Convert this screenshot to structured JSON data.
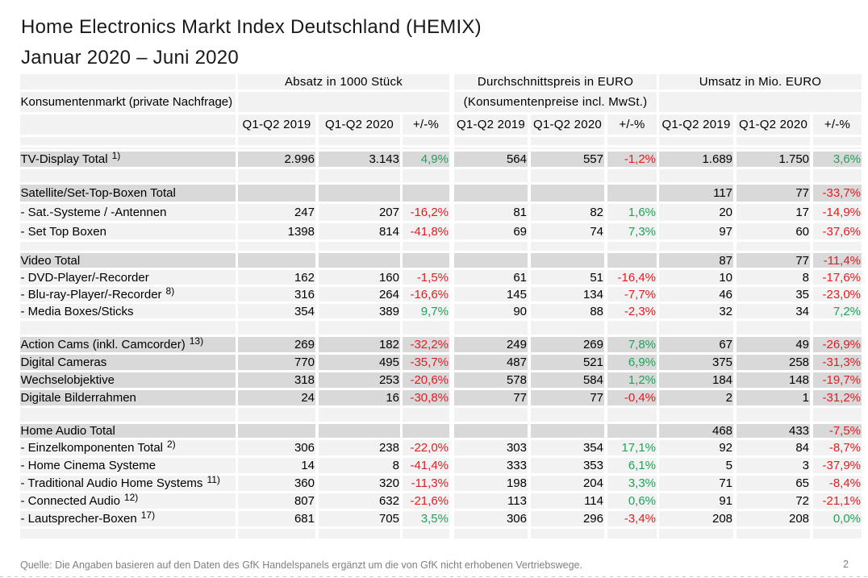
{
  "slide": {
    "title": "Home Electronics Markt Index Deutschland (HEMIX)",
    "subtitle": "Januar 2020 – Juni 2020",
    "footer_note": "Quelle: Die Angaben basieren auf den Daten des GfK Handelspanels ergänzt um die von GfK nicht erhobenen Vertriebswege.",
    "page_number": "2"
  },
  "colors": {
    "positive_green": "#1ea35a",
    "negative_red": "#e51b20",
    "row_shade_dark": "#d9d9d9",
    "row_shade_light": "#f2f2f2",
    "muted_gray": "#808080"
  },
  "table": {
    "row_header_label": "Konsumentenmarkt (private Nachfrage)",
    "groups": [
      {
        "label": "Absatz in 1000 Stück",
        "sublabel": ""
      },
      {
        "label": "Durchschnittspreis in EURO",
        "sublabel": "(Konsumentenpreise incl. MwSt.)"
      },
      {
        "label": "Umsatz in Mio. EURO",
        "sublabel": ""
      }
    ],
    "col_headers": [
      "Q1-Q2 2019",
      "Q1-Q2 2020",
      "+/-%"
    ],
    "rows": [
      {
        "kind": "spacer-sm"
      },
      {
        "kind": "spacer-sm"
      },
      {
        "kind": "data",
        "shade": "dark",
        "label": "TV-Display Total",
        "sup": "1)",
        "values": [
          "2.996",
          "3.143",
          "4,9%",
          "564",
          "557",
          "-1,2%",
          "1.689",
          "1.750",
          "3,6%"
        ]
      },
      {
        "kind": "spacer"
      },
      {
        "kind": "data",
        "shade": "dark",
        "label": "Satellite/Set-Top-Boxen Total",
        "sup": "",
        "values": [
          "",
          "",
          "",
          "",
          "",
          "",
          "117",
          "77",
          "-33,7%"
        ]
      },
      {
        "kind": "data",
        "shade": "light",
        "label": "- Sat.-Systeme / -Antennen",
        "sup": "",
        "values": [
          "247",
          "207",
          "-16,2%",
          "81",
          "82",
          "1,6%",
          "20",
          "17",
          "-14,9%"
        ]
      },
      {
        "kind": "data",
        "shade": "light",
        "label": "- Set Top Boxen",
        "sup": "",
        "values": [
          "1398",
          "814",
          "-41,8%",
          "69",
          "74",
          "7,3%",
          "97",
          "60",
          "-37,6%"
        ]
      },
      {
        "kind": "spacer"
      },
      {
        "kind": "data",
        "shade": "dark",
        "label": "Video Total",
        "sup": "",
        "values": [
          "",
          "",
          "",
          "",
          "",
          "",
          "87",
          "77",
          "-11,4%"
        ]
      },
      {
        "kind": "data",
        "shade": "light",
        "label": "- DVD-Player/-Recorder",
        "sup": "",
        "values": [
          "162",
          "160",
          "-1,5%",
          "61",
          "51",
          "-16,4%",
          "10",
          "8",
          "-17,6%"
        ]
      },
      {
        "kind": "data",
        "shade": "light",
        "label": "- Blu-ray-Player/-Recorder",
        "sup": "8)",
        "values": [
          "316",
          "264",
          "-16,6%",
          "145",
          "134",
          "-7,7%",
          "46",
          "35",
          "-23,0%"
        ]
      },
      {
        "kind": "data",
        "shade": "light",
        "label": "- Media Boxes/Sticks",
        "sup": "",
        "values": [
          "354",
          "389",
          "9,7%",
          "90",
          "88",
          "-2,3%",
          "32",
          "34",
          "7,2%"
        ]
      },
      {
        "kind": "spacer"
      },
      {
        "kind": "data",
        "shade": "dark",
        "label": "Action Cams (inkl. Camcorder)",
        "sup": "13)",
        "values": [
          "269",
          "182",
          "-32,2%",
          "249",
          "269",
          "7,8%",
          "67",
          "49",
          "-26,9%"
        ]
      },
      {
        "kind": "data",
        "shade": "dark",
        "label": "Digital Cameras",
        "sup": "",
        "values": [
          "770",
          "495",
          "-35,7%",
          "487",
          "521",
          "6,9%",
          "375",
          "258",
          "-31,3%"
        ]
      },
      {
        "kind": "data",
        "shade": "dark",
        "label": "Wechselobjektive",
        "sup": "",
        "values": [
          "318",
          "253",
          "-20,6%",
          "578",
          "584",
          "1,2%",
          "184",
          "148",
          "-19,7%"
        ]
      },
      {
        "kind": "data",
        "shade": "dark",
        "label": "Digitale Bilderrahmen",
        "sup": "",
        "values": [
          "24",
          "16",
          "-30,8%",
          "77",
          "77",
          "-0,4%",
          "2",
          "1",
          "-31,2%"
        ]
      },
      {
        "kind": "spacer"
      },
      {
        "kind": "data",
        "shade": "dark",
        "label": "Home Audio Total",
        "sup": "",
        "values": [
          "",
          "",
          "",
          "",
          "",
          "",
          "468",
          "433",
          "-7,5%"
        ]
      },
      {
        "kind": "data",
        "shade": "light",
        "label": "- Einzelkomponenten Total",
        "sup": "2)",
        "values": [
          "306",
          "238",
          "-22,0%",
          "303",
          "354",
          "17,1%",
          "92",
          "84",
          "-8,7%"
        ]
      },
      {
        "kind": "data",
        "shade": "light",
        "label": "- Home Cinema Systeme",
        "sup": "",
        "values": [
          "14",
          "8",
          "-41,4%",
          "333",
          "353",
          "6,1%",
          "5",
          "3",
          "-37,9%"
        ]
      },
      {
        "kind": "data",
        "shade": "light",
        "label": "- Traditional Audio Home Systems",
        "sup": "11)",
        "values": [
          "360",
          "320",
          "-11,3%",
          "198",
          "204",
          "3,3%",
          "71",
          "65",
          "-8,4%"
        ]
      },
      {
        "kind": "data",
        "shade": "light",
        "label": "- Connected Audio",
        "sup": "12)",
        "values": [
          "807",
          "632",
          "-21,6%",
          "113",
          "114",
          "0,6%",
          "91",
          "72",
          "-21,1%"
        ]
      },
      {
        "kind": "data",
        "shade": "light",
        "label": "- Lautsprecher-Boxen",
        "sup": "17)",
        "values": [
          "681",
          "705",
          "3,5%",
          "306",
          "296",
          "-3,4%",
          "208",
          "208",
          "0,0%"
        ]
      },
      {
        "kind": "spacer-end"
      }
    ]
  },
  "chart_data": {
    "type": "table",
    "title": "Home Electronics Markt Index Deutschland (HEMIX) Januar 2020 – Juni 2020",
    "column_groups": [
      "Absatz in 1000 Stück",
      "Durchschnittspreis in EURO",
      "Umsatz in Mio. EURO"
    ],
    "columns": [
      "Q1-Q2 2019",
      "Q1-Q2 2020",
      "+/-%",
      "Q1-Q2 2019",
      "Q1-Q2 2020",
      "+/-%",
      "Q1-Q2 2019",
      "Q1-Q2 2020",
      "+/-%"
    ],
    "rows": [
      {
        "category": "TV-Display Total",
        "absatz_2019": 2996,
        "absatz_2020": 3143,
        "absatz_pct": 4.9,
        "preis_2019": 564,
        "preis_2020": 557,
        "preis_pct": -1.2,
        "umsatz_2019": 1689,
        "umsatz_2020": 1750,
        "umsatz_pct": 3.6
      },
      {
        "category": "Satellite/Set-Top-Boxen Total",
        "absatz_2019": null,
        "absatz_2020": null,
        "absatz_pct": null,
        "preis_2019": null,
        "preis_2020": null,
        "preis_pct": null,
        "umsatz_2019": 117,
        "umsatz_2020": 77,
        "umsatz_pct": -33.7
      },
      {
        "category": "Sat.-Systeme / -Antennen",
        "absatz_2019": 247,
        "absatz_2020": 207,
        "absatz_pct": -16.2,
        "preis_2019": 81,
        "preis_2020": 82,
        "preis_pct": 1.6,
        "umsatz_2019": 20,
        "umsatz_2020": 17,
        "umsatz_pct": -14.9
      },
      {
        "category": "Set Top Boxen",
        "absatz_2019": 1398,
        "absatz_2020": 814,
        "absatz_pct": -41.8,
        "preis_2019": 69,
        "preis_2020": 74,
        "preis_pct": 7.3,
        "umsatz_2019": 97,
        "umsatz_2020": 60,
        "umsatz_pct": -37.6
      },
      {
        "category": "Video Total",
        "absatz_2019": null,
        "absatz_2020": null,
        "absatz_pct": null,
        "preis_2019": null,
        "preis_2020": null,
        "preis_pct": null,
        "umsatz_2019": 87,
        "umsatz_2020": 77,
        "umsatz_pct": -11.4
      },
      {
        "category": "DVD-Player/-Recorder",
        "absatz_2019": 162,
        "absatz_2020": 160,
        "absatz_pct": -1.5,
        "preis_2019": 61,
        "preis_2020": 51,
        "preis_pct": -16.4,
        "umsatz_2019": 10,
        "umsatz_2020": 8,
        "umsatz_pct": -17.6
      },
      {
        "category": "Blu-ray-Player/-Recorder",
        "absatz_2019": 316,
        "absatz_2020": 264,
        "absatz_pct": -16.6,
        "preis_2019": 145,
        "preis_2020": 134,
        "preis_pct": -7.7,
        "umsatz_2019": 46,
        "umsatz_2020": 35,
        "umsatz_pct": -23.0
      },
      {
        "category": "Media Boxes/Sticks",
        "absatz_2019": 354,
        "absatz_2020": 389,
        "absatz_pct": 9.7,
        "preis_2019": 90,
        "preis_2020": 88,
        "preis_pct": -2.3,
        "umsatz_2019": 32,
        "umsatz_2020": 34,
        "umsatz_pct": 7.2
      },
      {
        "category": "Action Cams (inkl. Camcorder)",
        "absatz_2019": 269,
        "absatz_2020": 182,
        "absatz_pct": -32.2,
        "preis_2019": 249,
        "preis_2020": 269,
        "preis_pct": 7.8,
        "umsatz_2019": 67,
        "umsatz_2020": 49,
        "umsatz_pct": -26.9
      },
      {
        "category": "Digital Cameras",
        "absatz_2019": 770,
        "absatz_2020": 495,
        "absatz_pct": -35.7,
        "preis_2019": 487,
        "preis_2020": 521,
        "preis_pct": 6.9,
        "umsatz_2019": 375,
        "umsatz_2020": 258,
        "umsatz_pct": -31.3
      },
      {
        "category": "Wechselobjektive",
        "absatz_2019": 318,
        "absatz_2020": 253,
        "absatz_pct": -20.6,
        "preis_2019": 578,
        "preis_2020": 584,
        "preis_pct": 1.2,
        "umsatz_2019": 184,
        "umsatz_2020": 148,
        "umsatz_pct": -19.7
      },
      {
        "category": "Digitale Bilderrahmen",
        "absatz_2019": 24,
        "absatz_2020": 16,
        "absatz_pct": -30.8,
        "preis_2019": 77,
        "preis_2020": 77,
        "preis_pct": -0.4,
        "umsatz_2019": 2,
        "umsatz_2020": 1,
        "umsatz_pct": -31.2
      },
      {
        "category": "Home Audio Total",
        "absatz_2019": null,
        "absatz_2020": null,
        "absatz_pct": null,
        "preis_2019": null,
        "preis_2020": null,
        "preis_pct": null,
        "umsatz_2019": 468,
        "umsatz_2020": 433,
        "umsatz_pct": -7.5
      },
      {
        "category": "Einzelkomponenten Total",
        "absatz_2019": 306,
        "absatz_2020": 238,
        "absatz_pct": -22.0,
        "preis_2019": 303,
        "preis_2020": 354,
        "preis_pct": 17.1,
        "umsatz_2019": 92,
        "umsatz_2020": 84,
        "umsatz_pct": -8.7
      },
      {
        "category": "Home Cinema Systeme",
        "absatz_2019": 14,
        "absatz_2020": 8,
        "absatz_pct": -41.4,
        "preis_2019": 333,
        "preis_2020": 353,
        "preis_pct": 6.1,
        "umsatz_2019": 5,
        "umsatz_2020": 3,
        "umsatz_pct": -37.9
      },
      {
        "category": "Traditional Audio Home Systems",
        "absatz_2019": 360,
        "absatz_2020": 320,
        "absatz_pct": -11.3,
        "preis_2019": 198,
        "preis_2020": 204,
        "preis_pct": 3.3,
        "umsatz_2019": 71,
        "umsatz_2020": 65,
        "umsatz_pct": -8.4
      },
      {
        "category": "Connected Audio",
        "absatz_2019": 807,
        "absatz_2020": 632,
        "absatz_pct": -21.6,
        "preis_2019": 113,
        "preis_2020": 114,
        "preis_pct": 0.6,
        "umsatz_2019": 91,
        "umsatz_2020": 72,
        "umsatz_pct": -21.1
      },
      {
        "category": "Lautsprecher-Boxen",
        "absatz_2019": 681,
        "absatz_2020": 705,
        "absatz_pct": 3.5,
        "preis_2019": 306,
        "preis_2020": 296,
        "preis_pct": -3.4,
        "umsatz_2019": 208,
        "umsatz_2020": 208,
        "umsatz_pct": 0.0
      }
    ]
  }
}
